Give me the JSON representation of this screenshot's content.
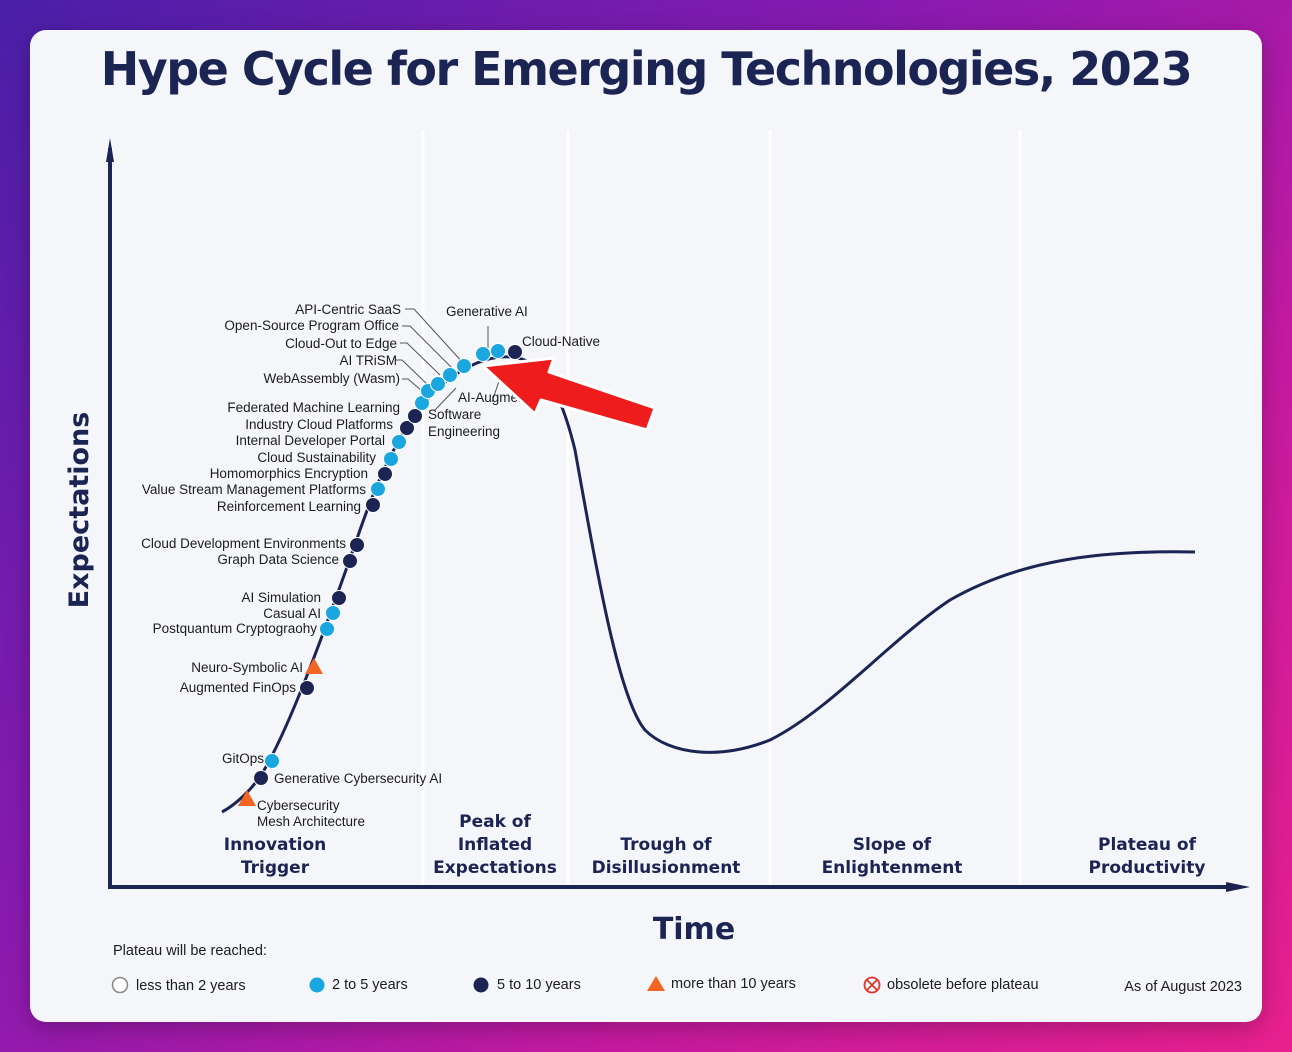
{
  "title": "Hype Cycle for Emerging Technologies, 2023",
  "chart_data": {
    "type": "hype-cycle",
    "title": "Hype Cycle for Emerging Technologies, 2023",
    "xlabel": "Time",
    "ylabel": "Expectations",
    "phases": [
      [
        "Innovation",
        "Trigger"
      ],
      [
        "Peak of",
        "Inflated",
        "Expectations"
      ],
      [
        "Trough of",
        "Disillusionment"
      ],
      [
        "Slope of",
        "Enlightenment"
      ],
      [
        "Plateau of",
        "Productivity"
      ]
    ],
    "technologies": [
      {
        "name": "Cybersecurity Mesh Architecture",
        "plateau": "more than 10 years"
      },
      {
        "name": "Generative Cybersecurity AI",
        "plateau": "5 to 10 years"
      },
      {
        "name": "GitOps",
        "plateau": "2 to 5 years"
      },
      {
        "name": "Augmented FinOps",
        "plateau": "5 to 10 years"
      },
      {
        "name": "Neuro-Symbolic AI",
        "plateau": "more than 10 years"
      },
      {
        "name": "Postquantum Cryptograohy",
        "plateau": "2 to 5 years"
      },
      {
        "name": "Casual AI",
        "plateau": "2 to 5 years"
      },
      {
        "name": "AI Simulation",
        "plateau": "5 to 10 years"
      },
      {
        "name": "Graph Data Science",
        "plateau": "5 to 10 years"
      },
      {
        "name": "Cloud Development Environments",
        "plateau": "5 to 10 years"
      },
      {
        "name": "Reinforcement Learning",
        "plateau": "5 to 10 years"
      },
      {
        "name": "Value Stream Management Platforms",
        "plateau": "2 to 5 years"
      },
      {
        "name": "Homomorphics Encryption",
        "plateau": "5 to 10 years"
      },
      {
        "name": "Cloud Sustainability",
        "plateau": "2 to 5 years"
      },
      {
        "name": "Internal Developer Portal",
        "plateau": "2 to 5 years"
      },
      {
        "name": "Industry Cloud Platforms",
        "plateau": "5 to 10 years"
      },
      {
        "name": "Federated Machine Learning",
        "plateau": "5 to 10 years"
      },
      {
        "name": "WebAssembly (Wasm)",
        "plateau": "2 to 5 years"
      },
      {
        "name": "AI TRiSM",
        "plateau": "2 to 5 years"
      },
      {
        "name": "Cloud-Out to Edge",
        "plateau": "2 to 5 years"
      },
      {
        "name": "Open-Source Program Office",
        "plateau": "2 to 5 years"
      },
      {
        "name": "API-Centric SaaS",
        "plateau": "2 to 5 years"
      },
      {
        "name": "Generative AI",
        "plateau": "2 to 5 years"
      },
      {
        "name": "Cloud-Native",
        "plateau": "5 to 10 years"
      },
      {
        "name": "AI-Augmented Software Engineering",
        "plateau": "2 to 5 years"
      }
    ],
    "label_lines": {
      "software": "Software",
      "engineering": "Engineering",
      "ai_augmented": "AI-Augmented",
      "cyber_mesh_1": "Cybersecurity",
      "cyber_mesh_2": "Mesh Architecture"
    },
    "annotation": "arrow pointing to Generative AI"
  },
  "legend": {
    "heading": "Plateau will be reached:",
    "items": [
      {
        "label": "less than 2 years",
        "marker": "hollow-circle"
      },
      {
        "label": "2 to 5 years",
        "marker": "light-blue-circle"
      },
      {
        "label": "5 to 10 years",
        "marker": "dark-navy-circle"
      },
      {
        "label": "more than 10 years",
        "marker": "orange-triangle"
      },
      {
        "label": "obsolete before plateau",
        "marker": "crossed-circle"
      }
    ],
    "as_of": "As of August 2023"
  },
  "colors": {
    "navy": "#1b2452",
    "light_blue": "#1aa7e0",
    "dark_dot": "#1b2452",
    "orange": "#f26522",
    "arrow_red": "#ee1c1c",
    "obsolete_red": "#e0352b"
  }
}
